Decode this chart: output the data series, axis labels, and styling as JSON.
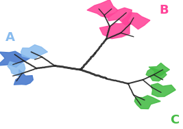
{
  "bg_color": "#ffffff",
  "label_A": "A",
  "label_B": "B",
  "label_C": "C",
  "color_A_dark": "#4477cc",
  "color_A_light": "#88bbee",
  "color_B": "#ff4499",
  "color_C": "#44bb44",
  "branch_color": "#222222",
  "label_A_color": "#88bbee",
  "label_B_color": "#ff4499",
  "label_C_color": "#44bb44"
}
